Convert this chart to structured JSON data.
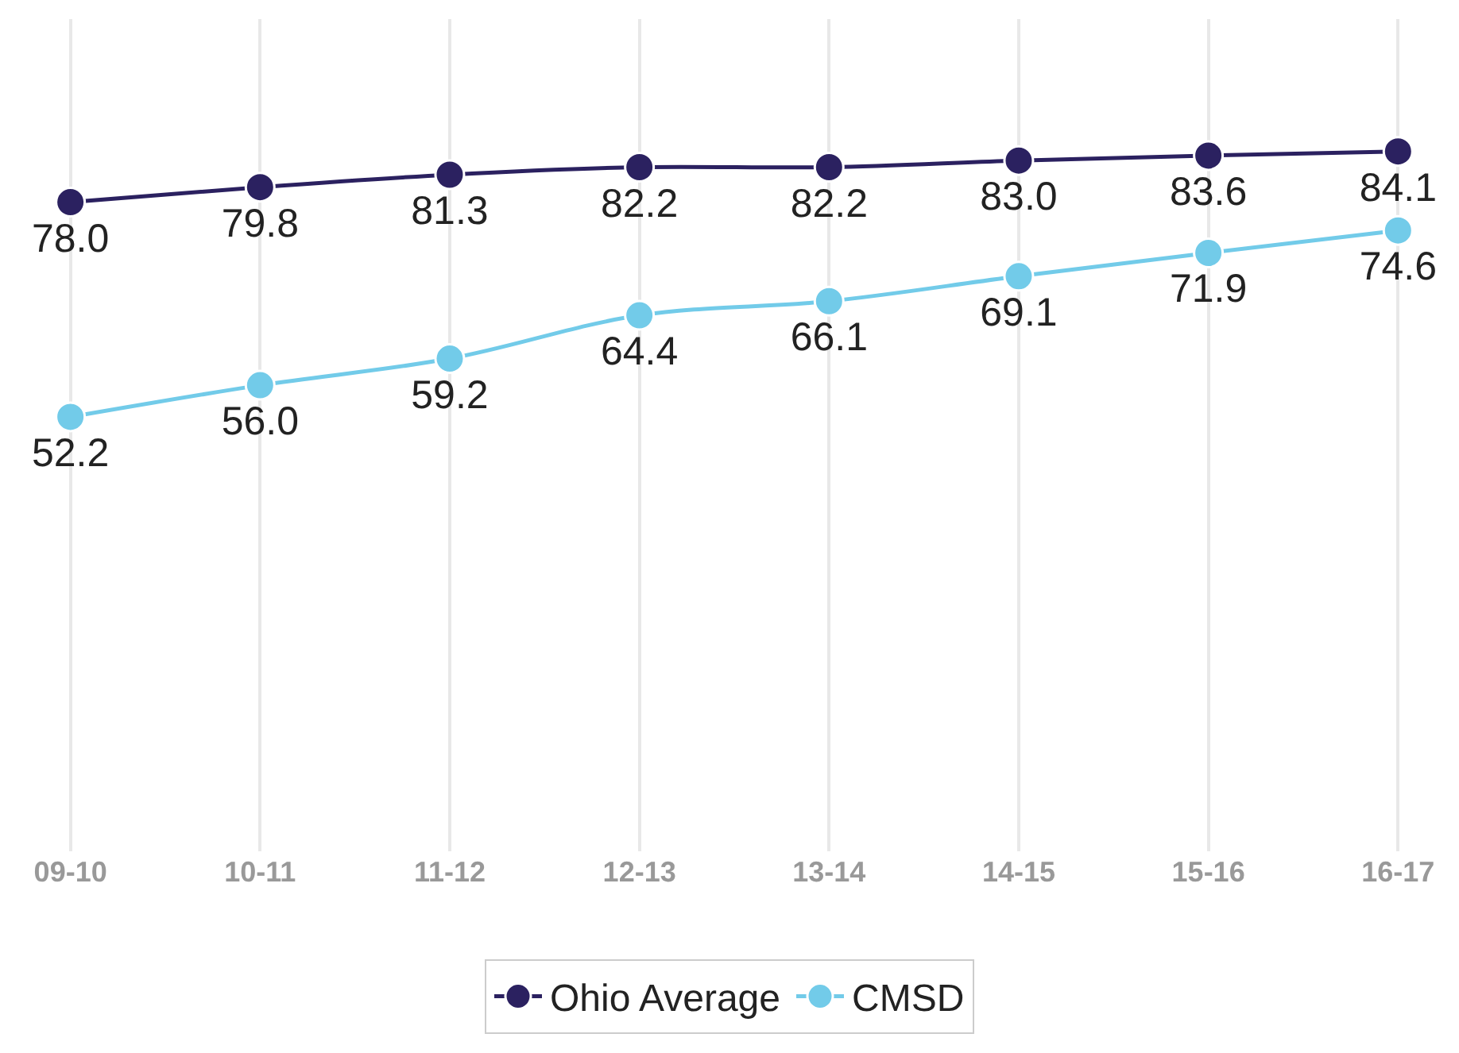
{
  "chart_data": {
    "type": "line",
    "categories": [
      "09-10",
      "10-11",
      "11-12",
      "12-13",
      "13-14",
      "14-15",
      "15-16",
      "16-17"
    ],
    "series": [
      {
        "name": "Ohio Average",
        "color": "#2b2160",
        "values": [
          78.0,
          79.8,
          81.3,
          82.2,
          82.2,
          83.0,
          83.6,
          84.1
        ],
        "value_labels": [
          "78.0",
          "79.8",
          "81.3",
          "82.2",
          "82.2",
          "83.0",
          "83.6",
          "84.1"
        ]
      },
      {
        "name": "CMSD",
        "color": "#72cbe9",
        "values": [
          52.2,
          56.0,
          59.2,
          64.4,
          66.1,
          69.1,
          71.9,
          74.6
        ],
        "value_labels": [
          "52.2",
          "56.0",
          "59.2",
          "64.4",
          "66.1",
          "69.1",
          "71.9",
          "74.6"
        ]
      }
    ],
    "ylim": [
      0,
      100
    ],
    "tick_labels": "x",
    "grid": "x",
    "legend": "bottom",
    "marker": "circle",
    "line_style": "solid"
  }
}
